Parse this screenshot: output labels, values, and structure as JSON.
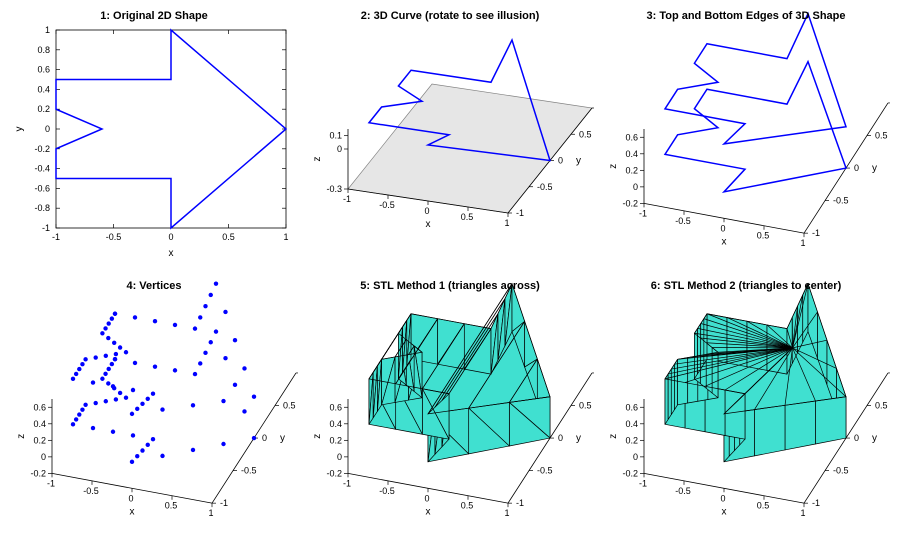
{
  "figure": {
    "background_color": "#ffffff",
    "grid": {
      "rows": 2,
      "cols": 3
    },
    "font_family": "Arial",
    "title_fontsize": 11,
    "title_fontweight": "bold",
    "tick_fontsize": 9,
    "label_fontsize": 10
  },
  "arrow2d": {
    "description": "right-pointing arrow outline used across panels",
    "x": [
      -1,
      0,
      0,
      1,
      0,
      0,
      -1,
      -1,
      -0.6,
      -1,
      -1
    ],
    "y": [
      0.5,
      0.5,
      1,
      0,
      -1,
      -0.5,
      -0.5,
      -0.2,
      0,
      0.2,
      0.5
    ]
  },
  "panels": [
    {
      "id": 1,
      "title": "1: Original 2D Shape",
      "type": "line2d",
      "xlabel": "x",
      "ylabel": "y",
      "xlim": [
        -1,
        1
      ],
      "ylim": [
        -1,
        1
      ],
      "xticks": [
        -1,
        -0.5,
        0,
        0.5,
        1
      ],
      "yticks": [
        -1,
        -0.8,
        -0.6,
        -0.4,
        -0.2,
        0,
        0.2,
        0.4,
        0.6,
        0.8,
        1
      ],
      "line_color": "#0000ff",
      "line_width": 1.5,
      "axis_box_color": "#000000",
      "style": "2d"
    },
    {
      "id": 2,
      "title": "2: 3D Curve (rotate to see illusion)",
      "type": "line3d",
      "xlabel": "x",
      "ylabel": "y",
      "zlabel": "z",
      "xlim": [
        -1,
        1
      ],
      "ylim": [
        -1,
        1
      ],
      "zlim": [
        -0.3,
        0.15
      ],
      "xticks": [
        -1,
        -0.5,
        0,
        0.5,
        1
      ],
      "yticks": [
        -1,
        -0.5,
        0,
        0.5,
        1
      ],
      "zticks": [
        -0.3,
        0,
        0.1
      ],
      "ztick_labels": [
        "-0.3",
        "0",
        "0.1"
      ],
      "line_color": "#0000ff",
      "line_width": 1.5,
      "floor_color": "#e6e6e6",
      "floor_border": "#808080",
      "style": "3d",
      "z": [
        0,
        0,
        0.12,
        -0.3,
        0.12,
        0,
        0,
        0,
        0,
        0,
        0
      ]
    },
    {
      "id": 3,
      "title": "3: Top and Bottom Edges of 3D Shape",
      "type": "line3d_double",
      "xlabel": "x",
      "ylabel": "y",
      "zlabel": "z",
      "xlim": [
        -1,
        1
      ],
      "ylim": [
        -1,
        1
      ],
      "zlim": [
        -0.2,
        0.7
      ],
      "xticks": [
        -1,
        -0.5,
        0,
        0.5,
        1
      ],
      "yticks": [
        -1,
        -0.5,
        0,
        0.5,
        1
      ],
      "zticks": [
        -0.2,
        0,
        0.2,
        0.4,
        0.6
      ],
      "line_color": "#0000ff",
      "line_width": 1.5,
      "style": "3d",
      "z_top": [
        0.55,
        0.55,
        0.7,
        0.3,
        0.7,
        0.55,
        0.55,
        0.55,
        0.55,
        0.55,
        0.55
      ],
      "z_bottom": [
        0.0,
        0.0,
        0.12,
        -0.2,
        0.12,
        0.0,
        0.0,
        0.0,
        0.0,
        0.0,
        0.0
      ]
    },
    {
      "id": 4,
      "title": "4: Vertices",
      "type": "scatter3d",
      "xlabel": "x",
      "ylabel": "y",
      "zlabel": "z",
      "xlim": [
        -1,
        1
      ],
      "ylim": [
        -1,
        1
      ],
      "zlim": [
        -0.2,
        0.7
      ],
      "xticks": [
        -1,
        -0.5,
        0,
        0.5,
        1
      ],
      "yticks": [
        -1,
        -0.5,
        0,
        0.5,
        1
      ],
      "zticks": [
        -0.2,
        0,
        0.2,
        0.4,
        0.6
      ],
      "marker_color": "#0000ff",
      "marker_size": 2.2,
      "style": "3d",
      "n_interp": 10
    },
    {
      "id": 5,
      "title": "5: STL Method 1 (triangles across)",
      "type": "mesh3d",
      "xlabel": "x",
      "ylabel": "y",
      "zlabel": "z",
      "xlim": [
        -1,
        1
      ],
      "ylim": [
        -1,
        1
      ],
      "zlim": [
        -0.2,
        0.7
      ],
      "xticks": [
        -1,
        -0.5,
        0,
        0.5,
        1
      ],
      "yticks": [
        -1,
        -0.5,
        0,
        0.5,
        1
      ],
      "zticks": [
        -0.2,
        0,
        0.2,
        0.4,
        0.6
      ],
      "face_color": "#40e0d0",
      "edge_color": "#000000",
      "edge_width": 0.7,
      "style": "3d",
      "method": "across",
      "n_strips": 24
    },
    {
      "id": 6,
      "title": "6: STL Method 2 (triangles to center)",
      "type": "mesh3d",
      "xlabel": "x",
      "ylabel": "y",
      "zlabel": "z",
      "xlim": [
        -1,
        1
      ],
      "ylim": [
        -1,
        1
      ],
      "zlim": [
        -0.2,
        0.7
      ],
      "xticks": [
        -1,
        -0.5,
        0,
        0.5,
        1
      ],
      "yticks": [
        -1,
        -0.5,
        0,
        0.5,
        1
      ],
      "zticks": [
        -0.2,
        0,
        0.2,
        0.4,
        0.6
      ],
      "face_color": "#40e0d0",
      "edge_color": "#000000",
      "edge_width": 0.7,
      "style": "3d",
      "method": "center",
      "center_data": [
        0.2,
        0.25,
        0.55
      ],
      "n_around": 40
    }
  ]
}
